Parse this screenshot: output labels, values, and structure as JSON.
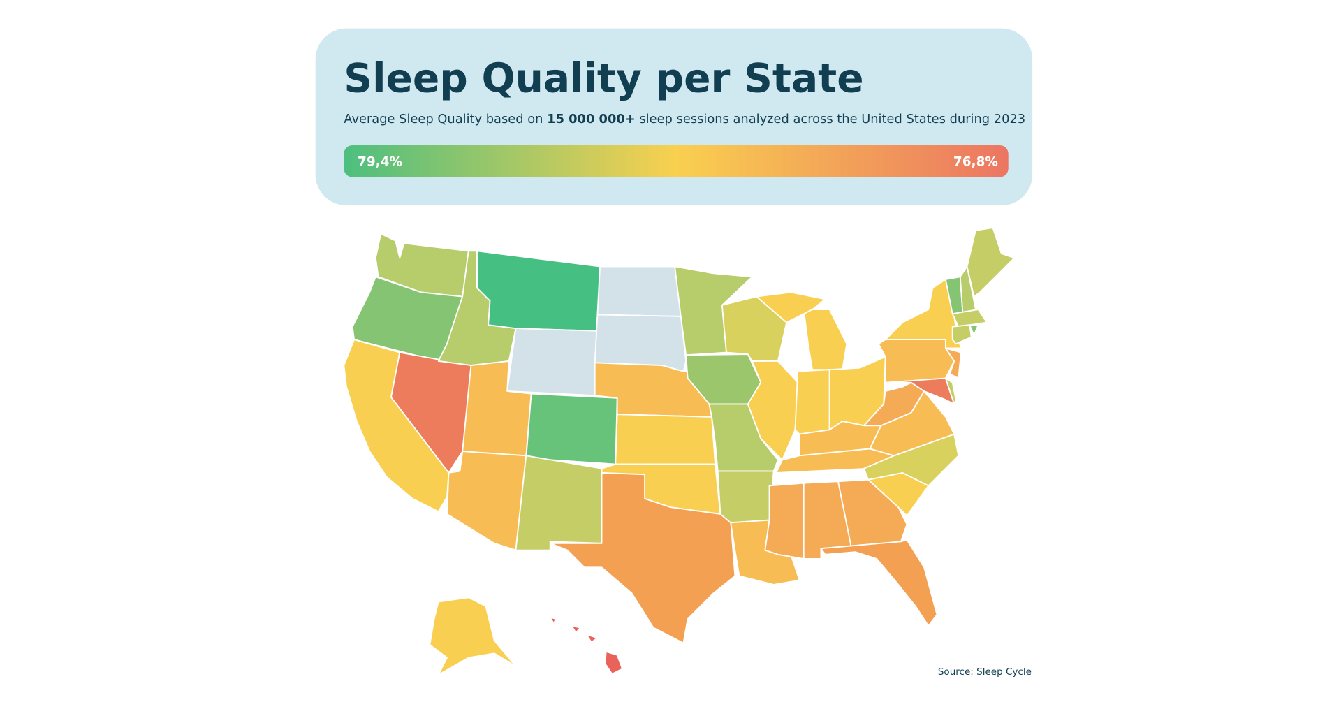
{
  "header": {
    "title": "Sleep Quality per State",
    "subtitle": {
      "before": "Average Sleep Quality based on",
      "bold": "15 000 000+",
      "after": "sleep sessions analyzed across the United States during 2023"
    }
  },
  "legend": {
    "high_label": "79,4%",
    "low_label": "76,8%"
  },
  "source": "Source: Sleep Cycle"
}
